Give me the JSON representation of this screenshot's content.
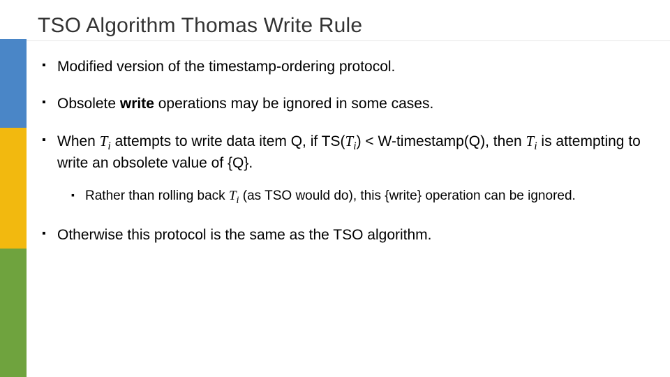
{
  "colors": {
    "stripe_blue": "#4a86c7",
    "stripe_yellow": "#f2b90f",
    "stripe_green": "#6fa33e",
    "title_color": "#333333",
    "text_color": "#000000",
    "bullet_color": "#000000",
    "background": "#ffffff",
    "rule_color": "#e5e5e5"
  },
  "typography": {
    "title_fontsize": 30,
    "body_fontsize": 21,
    "sub_fontsize": 19,
    "title_family": "Arial",
    "body_family": "Arial",
    "italic_var_family": "Times New Roman"
  },
  "title": "TSO Algorithm Thomas Write Rule",
  "bullets": {
    "b1": "Modified version of the timestamp-ordering protocol.",
    "b2a": "Obsolete  ",
    "b2b": "write",
    "b2c": " operations may be ignored in some cases.",
    "b3a": "When ",
    "b3_T": "T",
    "b3_i": "i",
    "b3b": " attempts to write data item Q, if TS(",
    "b3c": ") < W-timestamp(Q), then ",
    "b3d": " is attempting to write an obsolete value of {Q}.",
    "b3s_a": "Rather than rolling back ",
    "b3s_b": " (as TSO would do), this {write} operation can be ignored.",
    "b4": "Otherwise this protocol is the same as the TSO algorithm."
  }
}
